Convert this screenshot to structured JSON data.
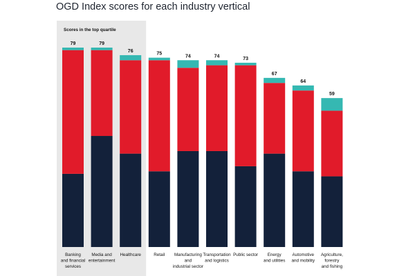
{
  "chart_data": {
    "type": "bar",
    "title": "OGD Index scores for each industry vertical",
    "highlight_label": "Scores in the top quartile",
    "highlight_count": 3,
    "stacked": true,
    "ylim": [
      0,
      82
    ],
    "grid": false,
    "legend": "none",
    "categories": [
      "Banking and financial services",
      "Media and entertainment",
      "Healthcare",
      "Retail",
      "Manufacturing and industrial sector",
      "Transportation and logistics",
      "Public sector",
      "Energy and utilities",
      "Automotive and mobility",
      "Agriculture, forestry and fishing"
    ],
    "category_lines": [
      [
        "Banking",
        "and financial",
        "services"
      ],
      [
        "Media and",
        "entertainment"
      ],
      [
        "Healthcare"
      ],
      [
        "Retail"
      ],
      [
        "Manufacturing",
        "and",
        "industrial sector"
      ],
      [
        "Transportation",
        "and logistics"
      ],
      [
        "Public sector"
      ],
      [
        "Energy",
        "and utilities"
      ],
      [
        "Automotive",
        "and mobility"
      ],
      [
        "Agriculture,",
        "forestry",
        "and fishing"
      ]
    ],
    "totals": [
      79,
      79,
      76,
      75,
      74,
      74,
      73,
      67,
      64,
      59
    ],
    "series": [
      {
        "color": "#13213a",
        "values": [
          29,
          44,
          37,
          30,
          38,
          38,
          32,
          37,
          30,
          28
        ]
      },
      {
        "color": "#e11b2a",
        "values": [
          49,
          34,
          37,
          44,
          33,
          34,
          40,
          28,
          32,
          26
        ]
      },
      {
        "color": "#35b8b2",
        "values": [
          1,
          1,
          2,
          1,
          3,
          2,
          1,
          2,
          2,
          5
        ]
      }
    ]
  }
}
